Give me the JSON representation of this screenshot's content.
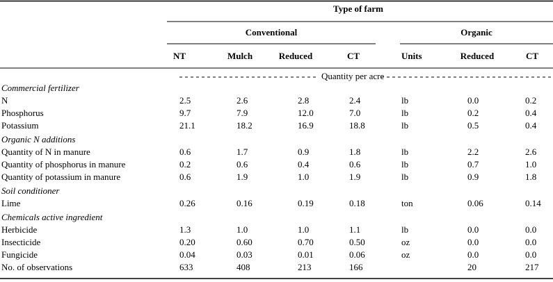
{
  "header": {
    "title": "Type of farm",
    "groups": [
      "Conventional",
      "Organic"
    ],
    "columns": [
      "NT",
      "Mulch",
      "Reduced",
      "CT",
      "Units",
      "Reduced",
      "CT"
    ],
    "subtitle": "Quantity per acre"
  },
  "sections": [
    {
      "title": "Commercial fertilizer",
      "rows": [
        [
          "N",
          "2.5",
          "2.6",
          "2.8",
          "2.4",
          "lb",
          "0.0",
          "0.2"
        ],
        [
          "Phosphorus",
          "9.7",
          "7.9",
          "12.0",
          "7.0",
          "lb",
          "0.2",
          "0.4"
        ],
        [
          "Potassium",
          "21.1",
          "18.2",
          "16.9",
          "18.8",
          "lb",
          "0.5",
          "0.4"
        ]
      ]
    },
    {
      "title": "Organic N additions",
      "rows": [
        [
          "Quantity of N in manure",
          "0.6",
          "1.7",
          "0.9",
          "1.8",
          "lb",
          "2.2",
          "2.6"
        ],
        [
          "Quantity of phosphorus in manure",
          "0.2",
          "0.6",
          "0.4",
          "0.6",
          "lb",
          "0.7",
          "1.0"
        ],
        [
          "Quantity of potassium in manure",
          "0.6",
          "1.9",
          "1.0",
          "1.9",
          "lb",
          "0.9",
          "1.8"
        ]
      ]
    },
    {
      "title": "Soil conditioner",
      "rows": [
        [
          "Lime",
          "0.26",
          "0.16",
          "0.19",
          "0.18",
          "ton",
          "0.06",
          "0.14"
        ]
      ]
    },
    {
      "title": "Chemicals active ingredient",
      "rows": [
        [
          "Herbicide",
          "1.3",
          "1.0",
          "1.0",
          "1.1",
          "lb",
          "0.0",
          "0.0"
        ],
        [
          "Insecticide",
          "0.20",
          "0.60",
          "0.70",
          "0.50",
          "oz",
          "0.0",
          "0.0"
        ],
        [
          "Fungicide",
          "0.04",
          "0.03",
          "0.01",
          "0.06",
          "oz",
          "0.0",
          "0.0"
        ]
      ]
    }
  ],
  "footer": [
    "No. of observations",
    "633",
    "408",
    "213",
    "166",
    null,
    "20",
    "217"
  ]
}
